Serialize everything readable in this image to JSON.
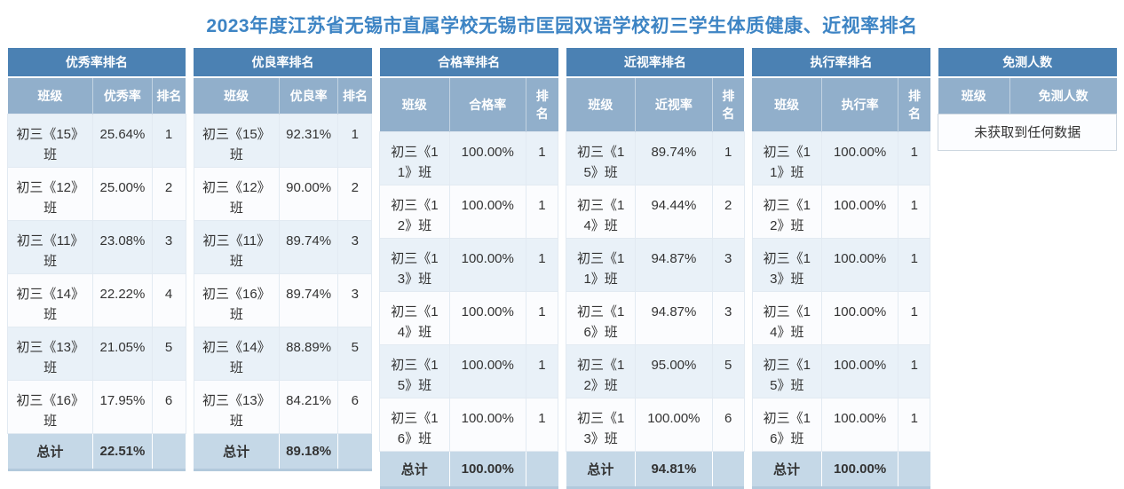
{
  "page_title": "2023年度江苏省无锡市直属学校无锡市匡园双语学校初三学生体质健康、近视率排名",
  "tables": [
    {
      "title": "优秀率排名",
      "columns": [
        "班级",
        "优秀率",
        "排名"
      ],
      "rows": [
        {
          "class_name": "初三《15》班",
          "rate": "25.64%",
          "rank": "1"
        },
        {
          "class_name": "初三《12》班",
          "rate": "25.00%",
          "rank": "2"
        },
        {
          "class_name": "初三《11》班",
          "rate": "23.08%",
          "rank": "3"
        },
        {
          "class_name": "初三《14》班",
          "rate": "22.22%",
          "rank": "4"
        },
        {
          "class_name": "初三《13》班",
          "rate": "21.05%",
          "rank": "5"
        },
        {
          "class_name": "初三《16》班",
          "rate": "17.95%",
          "rank": "6"
        }
      ],
      "total_label": "总计",
      "total_rate": "22.51%"
    },
    {
      "title": "优良率排名",
      "columns": [
        "班级",
        "优良率",
        "排名"
      ],
      "rows": [
        {
          "class_name": "初三《15》班",
          "rate": "92.31%",
          "rank": "1"
        },
        {
          "class_name": "初三《12》班",
          "rate": "90.00%",
          "rank": "2"
        },
        {
          "class_name": "初三《11》班",
          "rate": "89.74%",
          "rank": "3"
        },
        {
          "class_name": "初三《16》班",
          "rate": "89.74%",
          "rank": "3"
        },
        {
          "class_name": "初三《14》班",
          "rate": "88.89%",
          "rank": "5"
        },
        {
          "class_name": "初三《13》班",
          "rate": "84.21%",
          "rank": "6"
        }
      ],
      "total_label": "总计",
      "total_rate": "89.18%"
    },
    {
      "title": "合格率排名",
      "columns": [
        "班级",
        "合格率",
        "排名"
      ],
      "rows": [
        {
          "class_name": "初三《11》班",
          "rate": "100.00%",
          "rank": "1"
        },
        {
          "class_name": "初三《12》班",
          "rate": "100.00%",
          "rank": "1"
        },
        {
          "class_name": "初三《13》班",
          "rate": "100.00%",
          "rank": "1"
        },
        {
          "class_name": "初三《14》班",
          "rate": "100.00%",
          "rank": "1"
        },
        {
          "class_name": "初三《15》班",
          "rate": "100.00%",
          "rank": "1"
        },
        {
          "class_name": "初三《16》班",
          "rate": "100.00%",
          "rank": "1"
        }
      ],
      "total_label": "总计",
      "total_rate": "100.00%"
    },
    {
      "title": "近视率排名",
      "columns": [
        "班级",
        "近视率",
        "排名"
      ],
      "rows": [
        {
          "class_name": "初三《15》班",
          "rate": "89.74%",
          "rank": "1"
        },
        {
          "class_name": "初三《14》班",
          "rate": "94.44%",
          "rank": "2"
        },
        {
          "class_name": "初三《11》班",
          "rate": "94.87%",
          "rank": "3"
        },
        {
          "class_name": "初三《16》班",
          "rate": "94.87%",
          "rank": "3"
        },
        {
          "class_name": "初三《12》班",
          "rate": "95.00%",
          "rank": "5"
        },
        {
          "class_name": "初三《13》班",
          "rate": "100.00%",
          "rank": "6"
        }
      ],
      "total_label": "总计",
      "total_rate": "94.81%"
    },
    {
      "title": "执行率排名",
      "columns": [
        "班级",
        "执行率",
        "排名"
      ],
      "rows": [
        {
          "class_name": "初三《11》班",
          "rate": "100.00%",
          "rank": "1"
        },
        {
          "class_name": "初三《12》班",
          "rate": "100.00%",
          "rank": "1"
        },
        {
          "class_name": "初三《13》班",
          "rate": "100.00%",
          "rank": "1"
        },
        {
          "class_name": "初三《14》班",
          "rate": "100.00%",
          "rank": "1"
        },
        {
          "class_name": "初三《15》班",
          "rate": "100.00%",
          "rank": "1"
        },
        {
          "class_name": "初三《16》班",
          "rate": "100.00%",
          "rank": "1"
        }
      ],
      "total_label": "总计",
      "total_rate": "100.00%"
    }
  ],
  "exempt_table": {
    "title": "免测人数",
    "columns": [
      "班级",
      "免测人数"
    ],
    "empty_message": "未获取到任何数据"
  },
  "colors": {
    "title_text": "#3d84c4",
    "table_title_bg": "#4b81b3",
    "column_header_bg": "#91afcb",
    "row_odd_bg": "#e9f1f8",
    "row_even_bg": "#fbfcfe",
    "total_row_bg": "#c5d8e7",
    "cell_text": "#333333"
  }
}
